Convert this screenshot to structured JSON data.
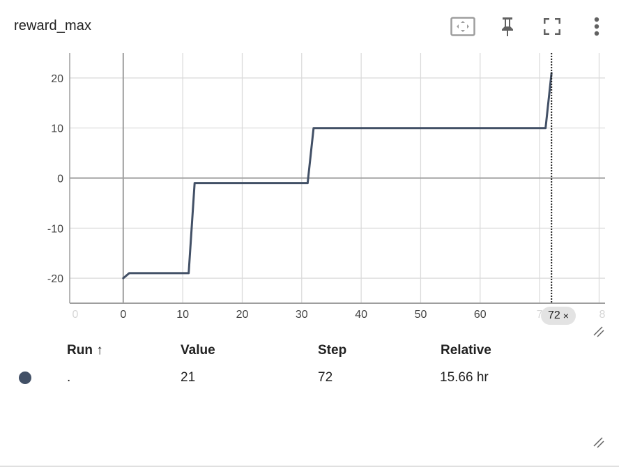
{
  "card": {
    "title": "reward_max"
  },
  "toolbar": {
    "fit_icon": "fit-domain-icon",
    "pin_icon": "pin-icon",
    "fullscreen_icon": "fullscreen-icon",
    "more_icon": "more-vert-icon"
  },
  "colors": {
    "series": "#425066",
    "grid": "#d9d9d9",
    "axis": "#9e9e9e",
    "zero_line": "#9e9e9e"
  },
  "chart_data": {
    "type": "line",
    "title": "",
    "xlabel": "",
    "ylabel": "",
    "xlim": [
      -9,
      81
    ],
    "ylim": [
      -25,
      25
    ],
    "x_ticks": [
      "0",
      "0",
      "10",
      "20",
      "30",
      "40",
      "50",
      "60",
      "7",
      "8"
    ],
    "y_ticks": [
      "20",
      "10",
      "0",
      "-10",
      "-20"
    ],
    "grid": true,
    "series": [
      {
        "name": "",
        "x": [
          0,
          1,
          11,
          12,
          31,
          32,
          71,
          72
        ],
        "y": [
          -20,
          -19,
          -19,
          -1,
          -1,
          10,
          10,
          21
        ]
      }
    ],
    "hover_step": 72
  },
  "hover": {
    "step_label": "72",
    "close_glyph": "×"
  },
  "table": {
    "headers": {
      "run": "Run ↑",
      "value": "Value",
      "step": "Step",
      "relative": "Relative"
    },
    "rows": [
      {
        "run": ".",
        "value": "21",
        "step": "72",
        "relative": "15.66 hr",
        "color": "#425066"
      }
    ]
  }
}
